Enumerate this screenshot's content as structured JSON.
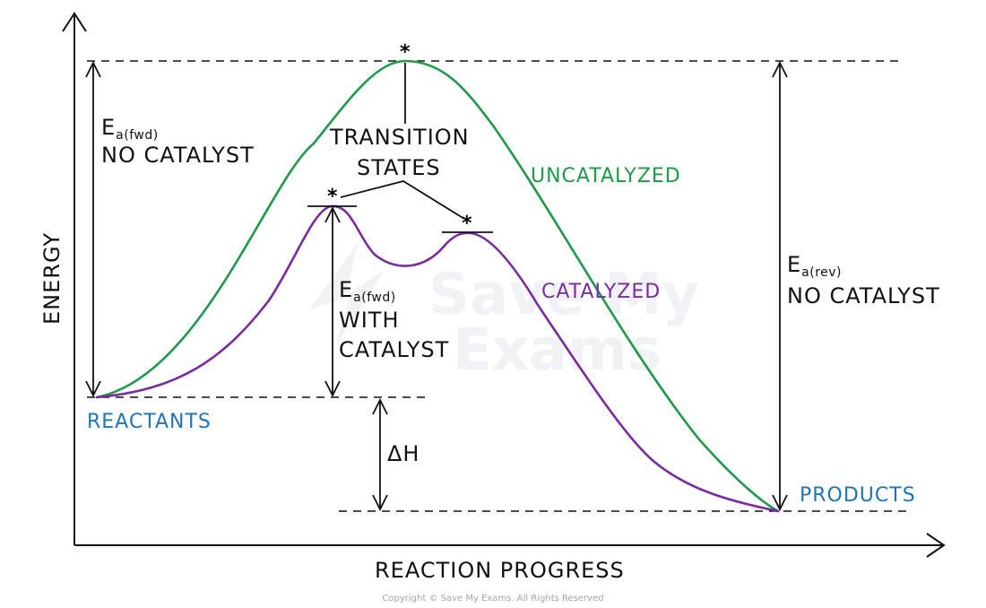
{
  "axes": {
    "x_label": "REACTION PROGRESS",
    "y_label": "ENERGY"
  },
  "labels": {
    "transition_states_line1": "TRANSITION",
    "transition_states_line2": "STATES",
    "uncatalyzed": "UNCATALYZED",
    "catalyzed": "CATALYZED",
    "reactants": "REACTANTS",
    "products": "PRODUCTS",
    "ea_fwd_no_cat_main": "E",
    "ea_fwd_no_cat_sub": "a(fwd)",
    "ea_fwd_no_cat_desc": "NO CATALYST",
    "ea_fwd_cat_main": "E",
    "ea_fwd_cat_sub": "a(fwd)",
    "ea_fwd_cat_desc1": "WITH",
    "ea_fwd_cat_desc2": "CATALYST",
    "ea_rev_main": "E",
    "ea_rev_sub": "a(rev)",
    "ea_rev_desc": "NO CATALYST",
    "delta_h": "ΔH",
    "star": "*"
  },
  "watermark": {
    "line1": "Save My",
    "line2": "Exams"
  },
  "copyright": "Copyright © Save My Exams. All Rights Reserved",
  "colors": {
    "uncatalyzed": "#1f9a4b",
    "catalyzed": "#7b2aa0",
    "reactants_products": "#1f74b8",
    "ink": "#111111"
  }
}
